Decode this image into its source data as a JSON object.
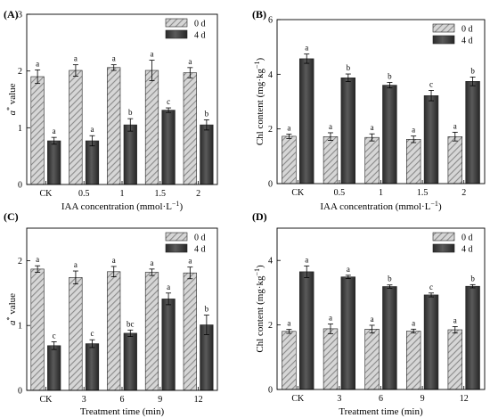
{
  "colors": {
    "day0_fill": "hatched light gray (#d4d4d4 with diagonal #8a8a8a lines)",
    "day4_fill": "#3b3b3b gradient"
  },
  "chart_data": [
    {
      "panel": "(A)",
      "type": "bar",
      "xlabel": "IAA concentration (mmol·L⁻¹)",
      "ylabel": "a* value",
      "categories": [
        "CK",
        "0.5",
        "1",
        "1.5",
        "2"
      ],
      "ylim": [
        0,
        3
      ],
      "yticks": [
        "0",
        "1",
        "2",
        "3"
      ],
      "legend": {
        "placement": "top-right"
      },
      "series": [
        {
          "name": "0 d",
          "values": [
            1.9,
            2.01,
            2.06,
            2.01,
            1.97
          ],
          "errors": [
            0.12,
            0.1,
            0.05,
            0.18,
            0.09
          ],
          "letters": [
            "a",
            "a",
            "a",
            "a",
            "a"
          ]
        },
        {
          "name": "4 d",
          "values": [
            0.77,
            0.77,
            1.05,
            1.31,
            1.05
          ],
          "errors": [
            0.06,
            0.09,
            0.11,
            0.04,
            0.09
          ],
          "letters": [
            "a",
            "a",
            "b",
            "c",
            "b"
          ]
        }
      ]
    },
    {
      "panel": "(B)",
      "type": "bar",
      "xlabel": "IAA concentration (mmol·L⁻¹)",
      "ylabel": "Chl content (mg·kg⁻¹)",
      "categories": [
        "CK",
        "0.5",
        "1",
        "1.5",
        "2"
      ],
      "ylim": [
        0,
        6
      ],
      "yticks": [
        "0",
        "2",
        "4",
        "6"
      ],
      "legend": {
        "placement": "top-right"
      },
      "series": [
        {
          "name": "0 d",
          "values": [
            1.73,
            1.72,
            1.69,
            1.62,
            1.72
          ],
          "errors": [
            0.08,
            0.14,
            0.13,
            0.12,
            0.16
          ],
          "letters": [
            "a",
            "a",
            "a",
            "a",
            "a"
          ]
        },
        {
          "name": "4 d",
          "values": [
            4.57,
            3.87,
            3.6,
            3.22,
            3.74
          ],
          "errors": [
            0.17,
            0.14,
            0.1,
            0.19,
            0.16
          ],
          "letters": [
            "a",
            "b",
            "b",
            "c",
            "b"
          ]
        }
      ]
    },
    {
      "panel": "(C)",
      "type": "bar",
      "xlabel": "Treatment time (min)",
      "ylabel": "a* value",
      "categories": [
        "CK",
        "3",
        "6",
        "9",
        "12"
      ],
      "ylim": [
        0,
        2.5
      ],
      "yticks": [
        "0",
        "1",
        "2"
      ],
      "legend": {
        "placement": "top-right"
      },
      "series": [
        {
          "name": "0 d",
          "values": [
            1.87,
            1.74,
            1.83,
            1.82,
            1.81
          ],
          "errors": [
            0.05,
            0.1,
            0.08,
            0.05,
            0.09
          ],
          "letters": [
            "a",
            "a",
            "a",
            "a",
            "a"
          ]
        },
        {
          "name": "4 d",
          "values": [
            0.69,
            0.72,
            0.88,
            1.41,
            1.01
          ],
          "errors": [
            0.06,
            0.06,
            0.05,
            0.09,
            0.15
          ],
          "letters": [
            "c",
            "c",
            "bc",
            "a",
            "b"
          ]
        }
      ]
    },
    {
      "panel": "(D)",
      "type": "bar",
      "xlabel": "Treatment time (min)",
      "ylabel": "Chl content (mg·kg⁻¹)",
      "categories": [
        "CK",
        "3",
        "6",
        "9",
        "12"
      ],
      "ylim": [
        0,
        5
      ],
      "yticks": [
        "0",
        "2",
        "4"
      ],
      "legend": {
        "placement": "top-right"
      },
      "series": [
        {
          "name": "0 d",
          "values": [
            1.8,
            1.88,
            1.87,
            1.81,
            1.85
          ],
          "errors": [
            0.06,
            0.15,
            0.12,
            0.06,
            0.1
          ],
          "letters": [
            "a",
            "a",
            "a",
            "a",
            "a"
          ]
        },
        {
          "name": "4 d",
          "values": [
            3.65,
            3.49,
            3.19,
            2.93,
            3.2
          ],
          "errors": [
            0.18,
            0.05,
            0.05,
            0.06,
            0.05
          ],
          "letters": [
            "a",
            "a",
            "b",
            "c",
            "b"
          ]
        }
      ]
    }
  ]
}
